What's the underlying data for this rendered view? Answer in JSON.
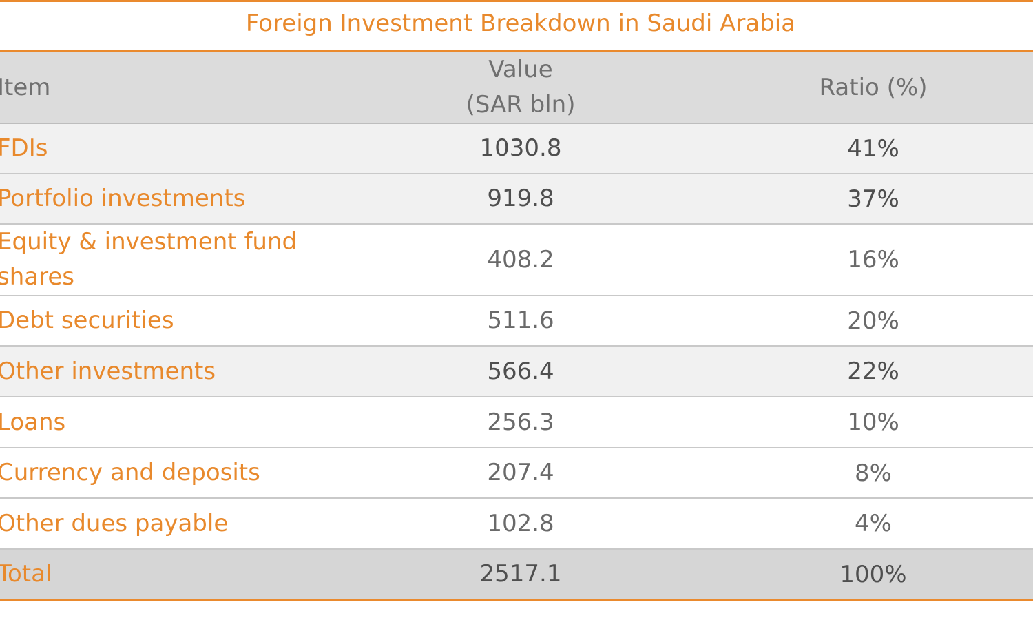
{
  "chart_data": {
    "type": "table",
    "title": "Foreign Investment Breakdown in Saudi Arabia",
    "columns": [
      {
        "label": "Item",
        "label_lines": [
          "Item"
        ]
      },
      {
        "label": "Value (SAR bln)",
        "label_lines": [
          "Value",
          "(SAR bln)"
        ]
      },
      {
        "label": "Ratio (%)",
        "label_lines": [
          "Ratio (%)"
        ]
      }
    ],
    "rows": [
      {
        "item": "FDIs",
        "item_lines": [
          "FDIs"
        ],
        "value": 1030.8,
        "value_text": "1030.8",
        "ratio": 41,
        "ratio_text": "41%",
        "shaded": true,
        "bold": true
      },
      {
        "item": "Portfolio investments",
        "item_lines": [
          "Portfolio investments"
        ],
        "value": 919.8,
        "value_text": "919.8",
        "ratio": 37,
        "ratio_text": "37%",
        "shaded": true,
        "bold": true
      },
      {
        "item": "Equity & investment fund shares",
        "item_lines": [
          "Equity & investment fund",
          "shares"
        ],
        "value": 408.2,
        "value_text": "408.2",
        "ratio": 16,
        "ratio_text": "16%",
        "shaded": false,
        "bold": false
      },
      {
        "item": "Debt securities",
        "item_lines": [
          "Debt securities"
        ],
        "value": 511.6,
        "value_text": "511.6",
        "ratio": 20,
        "ratio_text": "20%",
        "shaded": false,
        "bold": false
      },
      {
        "item": "Other investments",
        "item_lines": [
          "Other investments"
        ],
        "value": 566.4,
        "value_text": "566.4",
        "ratio": 22,
        "ratio_text": "22%",
        "shaded": true,
        "bold": true
      },
      {
        "item": "Loans",
        "item_lines": [
          "Loans"
        ],
        "value": 256.3,
        "value_text": "256.3",
        "ratio": 10,
        "ratio_text": "10%",
        "shaded": false,
        "bold": false
      },
      {
        "item": "Currency and deposits",
        "item_lines": [
          "Currency and deposits"
        ],
        "value": 207.4,
        "value_text": "207.4",
        "ratio": 8,
        "ratio_text": "8%",
        "shaded": false,
        "bold": false
      },
      {
        "item": "Other dues payable",
        "item_lines": [
          "Other dues payable"
        ],
        "value": 102.8,
        "value_text": "102.8",
        "ratio": 4,
        "ratio_text": "4%",
        "shaded": false,
        "bold": false
      }
    ],
    "total": {
      "item": "Total",
      "value": 2517.1,
      "value_text": "2517.1",
      "ratio": 100,
      "ratio_text": "100%"
    }
  },
  "colors": {
    "accent": "#e8892c",
    "text": "#6a6a6a",
    "header_bg": "#dcdcdc",
    "shaded_row_bg": "#f1f1f1",
    "total_bg": "#d6d6d6",
    "rule": "#ea8a2e"
  }
}
